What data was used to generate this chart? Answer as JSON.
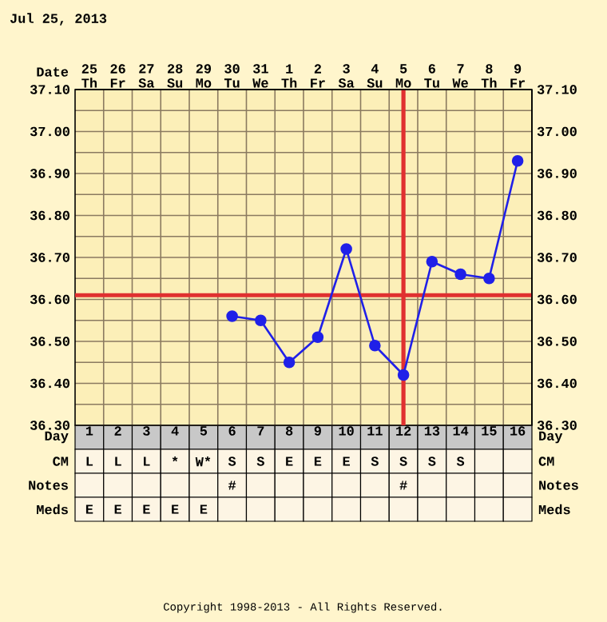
{
  "chart_data": [
    {
      "type": "line",
      "title": "Jul 25, 2013",
      "xlabel": "Day",
      "x2label": "Date",
      "x": [
        6,
        7,
        8,
        9,
        10,
        11,
        12,
        13,
        14,
        15,
        16
      ],
      "values": [
        36.56,
        36.55,
        36.45,
        36.51,
        36.72,
        36.49,
        36.42,
        36.69,
        36.66,
        36.65,
        36.93
      ],
      "color": "#2020e8",
      "marker": "circle",
      "line_style": "solid",
      "grid": true,
      "xlim": [
        0.5,
        16.5
      ],
      "xticks": [
        1,
        2,
        3,
        4,
        5,
        6,
        7,
        8,
        9,
        10,
        11,
        12,
        13,
        14,
        15,
        16,
        {
          "value": 1.5,
          "label": null
        },
        {
          "value": 2.5,
          "label": null
        },
        {
          "value": 3.5,
          "label": null
        },
        {
          "value": 4.5,
          "label": null
        },
        {
          "value": 5.5,
          "label": null
        },
        {
          "value": 6.5,
          "label": null
        },
        {
          "value": 7.5,
          "label": null
        },
        {
          "value": 8.5,
          "label": null
        },
        {
          "value": 9.5,
          "label": null
        },
        {
          "value": 10.5,
          "label": null
        },
        {
          "value": 11.5,
          "label": null
        },
        {
          "value": 12.5,
          "label": null
        },
        {
          "value": 13.5,
          "label": null
        },
        {
          "value": 14.5,
          "label": null
        },
        {
          "value": 15.5,
          "label": null
        }
      ],
      "x2lim": [
        "2013-07-24T12:00",
        "2013-08-09T12:00"
      ],
      "x2ticks": [
        {
          "value": "2013-07-25",
          "label": "25 Th"
        },
        {
          "value": "2013-07-26",
          "label": "26 Fr"
        },
        {
          "value": "2013-07-27",
          "label": "27 Sa"
        },
        {
          "value": "2013-07-28",
          "label": "28 Su"
        },
        {
          "value": "2013-07-29",
          "label": "29 Mo"
        },
        {
          "value": "2013-07-30",
          "label": "30 Tu"
        },
        {
          "value": "2013-07-31",
          "label": "31 We"
        },
        {
          "value": "2013-08-01",
          "label": "1 Th"
        },
        {
          "value": "2013-08-02",
          "label": "2 Fr"
        },
        {
          "value": "2013-08-03",
          "label": "3 Sa"
        },
        {
          "value": "2013-08-04",
          "label": "4 Su"
        },
        {
          "value": "2013-08-05",
          "label": "5 Mo"
        },
        {
          "value": "2013-08-06",
          "label": "6 Tu"
        },
        {
          "value": "2013-08-07",
          "label": "7 We"
        },
        {
          "value": "2013-08-08",
          "label": "8 Th"
        },
        {
          "value": "2013-08-09",
          "label": "9 Fr"
        }
      ],
      "ylim": [
        36.3,
        37.1
      ],
      "yticks": [
        {
          "value": 36.3,
          "label": "36.30"
        },
        {
          "value": 36.4,
          "label": "36.40"
        },
        {
          "value": 36.5,
          "label": "36.50"
        },
        {
          "value": 36.6,
          "label": "36.60"
        },
        {
          "value": 36.7,
          "label": "36.70"
        },
        {
          "value": 36.8,
          "label": "36.80"
        },
        {
          "value": 36.9,
          "label": "36.90"
        },
        {
          "value": 37.0,
          "label": "37.00"
        },
        {
          "value": 37.1,
          "label": "37.10"
        }
      ],
      "y2lim": [
        36.3,
        37.1
      ],
      "y2ticks": [
        {
          "value": 36.3,
          "label": "36.30"
        },
        {
          "value": 36.4,
          "label": "36.40"
        },
        {
          "value": 36.5,
          "label": "36.50"
        },
        {
          "value": 36.6,
          "label": "36.60"
        },
        {
          "value": 36.7,
          "label": "36.70"
        },
        {
          "value": 36.8,
          "label": "36.80"
        },
        {
          "value": 36.9,
          "label": "36.90"
        },
        {
          "value": 37.0,
          "label": "37.00"
        },
        {
          "value": 37.1,
          "label": "37.10"
        }
      ],
      "ref_lines": [
        {
          "axis": "y",
          "value": 36.61,
          "color": "#e03030"
        },
        {
          "axis": "x",
          "value": 12,
          "color": "#e03030"
        }
      ],
      "annotations": [
        "Copyright 1998-2013 - All Rights Reserved."
      ]
    },
    {
      "type": "other",
      "y_categories": [
        "CM",
        "Notes",
        "Meds"
      ],
      "y2_categories": [
        "CM",
        "Notes",
        "Meds"
      ],
      "cell_labels": [
        [
          "L",
          "L",
          "L",
          "*",
          "W*",
          "S",
          "S",
          "E",
          "E",
          "E",
          "S",
          "S",
          "S",
          "S",
          null,
          null
        ],
        [
          null,
          null,
          null,
          null,
          null,
          "#",
          null,
          null,
          null,
          null,
          null,
          "#",
          null,
          null,
          null,
          null
        ],
        [
          "E",
          "E",
          "E",
          "E",
          "E",
          null,
          null,
          null,
          null,
          null,
          null,
          null,
          null,
          null,
          null,
          null
        ]
      ]
    }
  ]
}
